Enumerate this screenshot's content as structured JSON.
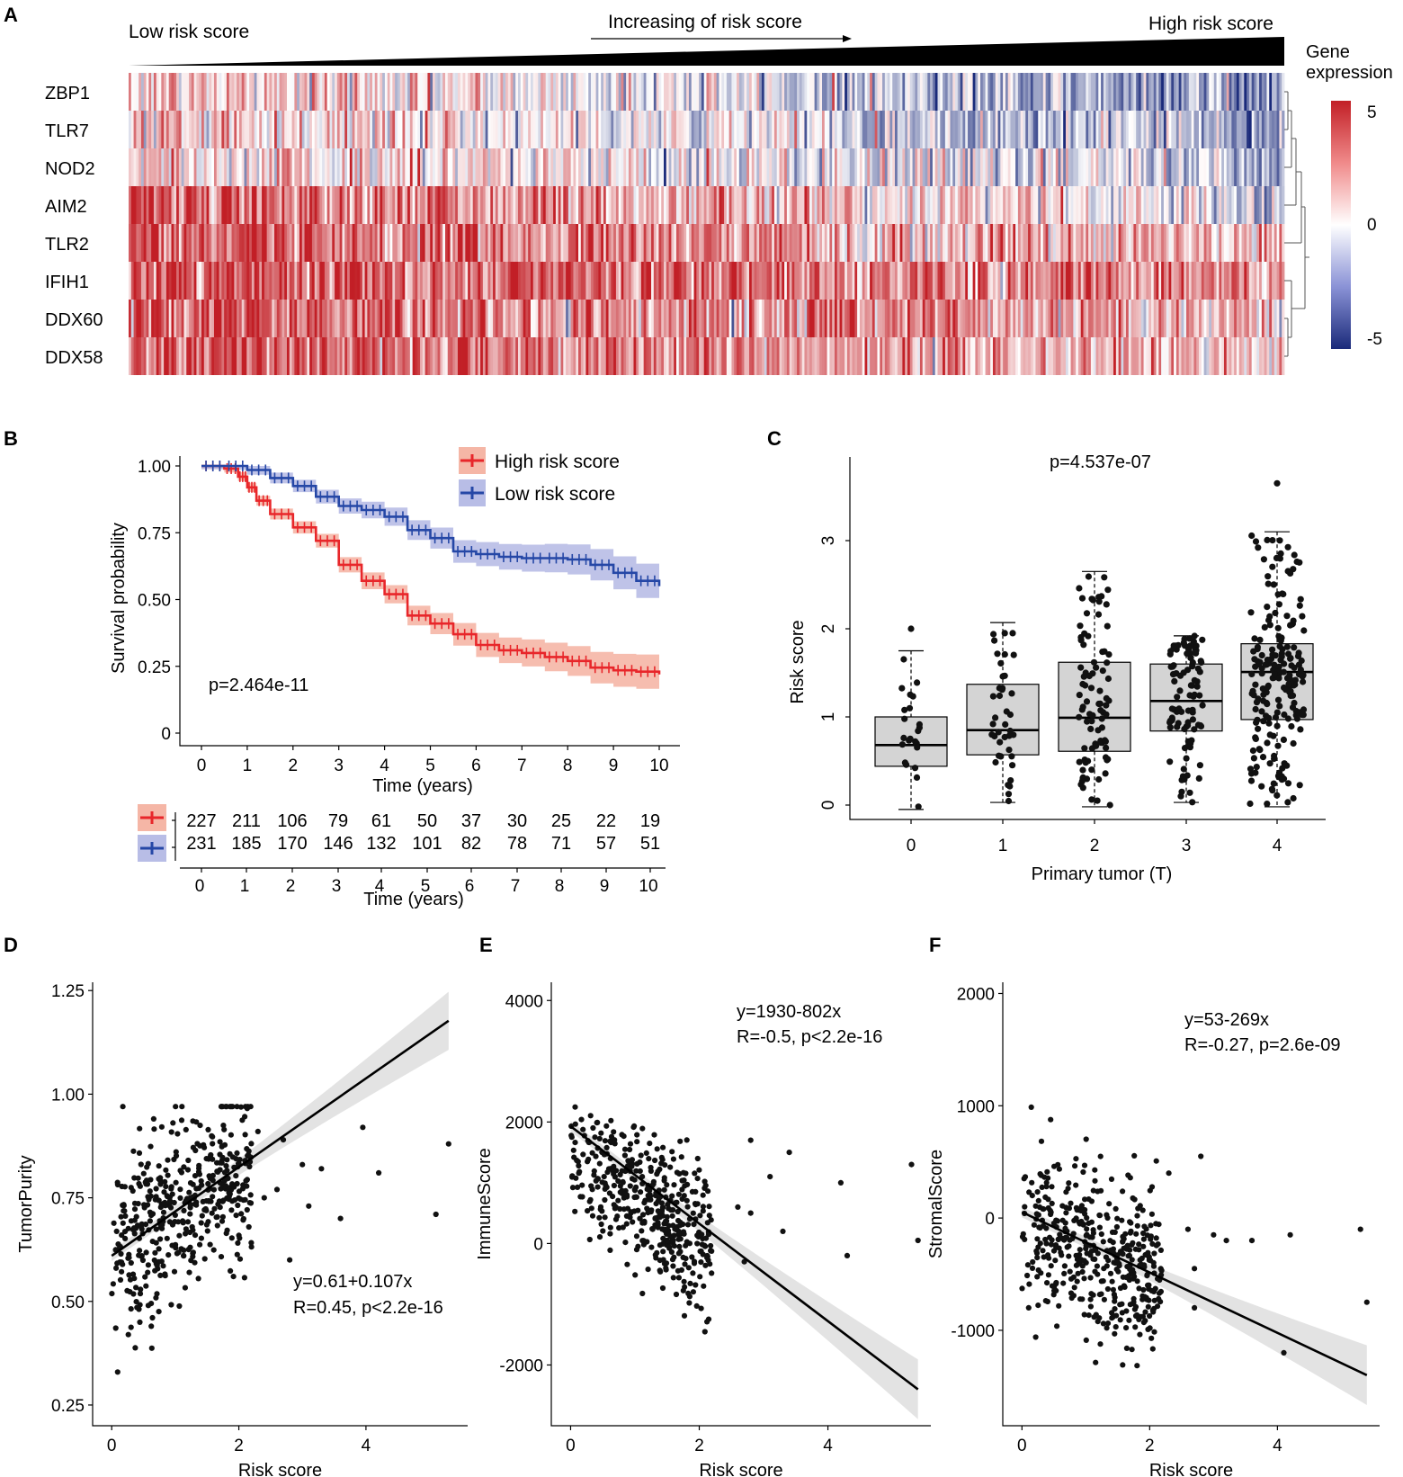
{
  "colors": {
    "red": "#e8262a",
    "blue": "#2547a6",
    "red_band": "#f5b6a6",
    "blue_band": "#b8bde6",
    "dark_red": "#c21f26",
    "dark_blue": "#1a2a7a",
    "box_fill": "#d4d4d4",
    "ci_band": "#e3e3e3"
  },
  "panels": {
    "A": {
      "label": "A",
      "low_label": "Low risk score",
      "mid_label": "Increasing of risk score",
      "high_label": "High risk score",
      "legend_title_1": "Gene",
      "legend_title_2": "expression",
      "legend_ticks": [
        "5",
        "0",
        "-5"
      ]
    },
    "B": {
      "label": "B",
      "pvalue": "p=2.464e-11",
      "legend": [
        "High risk score",
        "Low risk score"
      ],
      "xlabel": "Time (years)",
      "ylabel": "Survival probability"
    },
    "C": {
      "label": "C",
      "pvalue": "p=4.537e-07",
      "xlabel": "Primary tumor (T)",
      "ylabel": "Risk score"
    },
    "D": {
      "label": "D",
      "equation": "y=0.61+0.107x",
      "stats": "R=0.45, p<2.2e-16",
      "xlabel": "Risk score",
      "ylabel": "TumorPurity"
    },
    "E": {
      "label": "E",
      "equation": "y=1930-802x",
      "stats": "R=-0.5, p<2.2e-16",
      "xlabel": "Risk score",
      "ylabel": "ImmuneScore"
    },
    "F": {
      "label": "F",
      "equation": "y=53-269x",
      "stats": "R=-0.27, p=2.6e-09",
      "xlabel": "Risk score",
      "ylabel": "StromalScore"
    }
  },
  "chart_data": [
    {
      "type": "heatmap",
      "panel": "A",
      "rows": [
        "ZBP1",
        "TLR7",
        "NOD2",
        "AIM2",
        "TLR2",
        "IFIH1",
        "DDX60",
        "DDX58"
      ],
      "row_mean_trend": [
        [
          1.5,
          -2.5
        ],
        [
          1.5,
          -2.0
        ],
        [
          1.2,
          -1.2
        ],
        [
          4.0,
          -0.5
        ],
        [
          3.5,
          1.2
        ],
        [
          4.2,
          2.2
        ],
        [
          3.8,
          1.5
        ],
        [
          3.8,
          1.2
        ]
      ],
      "color_scale": {
        "min": -5,
        "mid": 0,
        "max": 5,
        "low_color": "#1a2a7a",
        "mid_color": "#ffffff",
        "high_color": "#c21f26"
      },
      "column_order": "increasing risk score",
      "n_columns": 460
    },
    {
      "type": "line",
      "panel": "B",
      "subtype": "kaplan-meier",
      "xlabel": "Time (years)",
      "ylabel": "Survival probability",
      "xlim": [
        0,
        10
      ],
      "ylim": [
        0,
        1
      ],
      "xticks": [
        "0",
        "1",
        "2",
        "3",
        "4",
        "5",
        "6",
        "7",
        "8",
        "9",
        "10"
      ],
      "yticks": [
        "0",
        "0.25",
        "0.50",
        "0.75",
        "1.00"
      ],
      "series": [
        {
          "name": "High risk score",
          "color": "#e8262a",
          "x": [
            0,
            0.5,
            0.8,
            1.0,
            1.2,
            1.5,
            2.0,
            2.5,
            3.0,
            3.5,
            4.0,
            4.5,
            5.0,
            5.5,
            6.0,
            6.5,
            7.0,
            7.5,
            8.0,
            8.5,
            9.0,
            9.5,
            10.0
          ],
          "y": [
            1.0,
            0.99,
            0.96,
            0.92,
            0.87,
            0.82,
            0.77,
            0.72,
            0.63,
            0.57,
            0.52,
            0.44,
            0.41,
            0.37,
            0.33,
            0.31,
            0.3,
            0.285,
            0.27,
            0.245,
            0.235,
            0.23,
            0.22
          ]
        },
        {
          "name": "Low risk score",
          "color": "#2547a6",
          "x": [
            0,
            0.5,
            1.0,
            1.5,
            2.0,
            2.5,
            3.0,
            3.5,
            4.0,
            4.5,
            5.0,
            5.5,
            6.0,
            6.5,
            7.0,
            7.5,
            8.0,
            8.5,
            9.0,
            9.5,
            10.0
          ],
          "y": [
            1.0,
            1.0,
            0.985,
            0.955,
            0.925,
            0.885,
            0.85,
            0.835,
            0.81,
            0.76,
            0.73,
            0.68,
            0.67,
            0.66,
            0.655,
            0.655,
            0.65,
            0.63,
            0.6,
            0.57,
            0.55
          ]
        }
      ],
      "risk_table": {
        "times": [
          "0",
          "1",
          "2",
          "3",
          "4",
          "5",
          "6",
          "7",
          "8",
          "9",
          "10"
        ],
        "high": [
          "227",
          "211",
          "106",
          "79",
          "61",
          "50",
          "37",
          "30",
          "25",
          "22",
          "19"
        ],
        "low": [
          "231",
          "185",
          "170",
          "146",
          "132",
          "101",
          "82",
          "78",
          "71",
          "57",
          "51"
        ]
      }
    },
    {
      "type": "box",
      "panel": "C",
      "xlabel": "Primary tumor (T)",
      "ylabel": "Risk score",
      "categories": [
        "0",
        "1",
        "2",
        "3",
        "4"
      ],
      "ylim": [
        -0.1,
        3.8
      ],
      "yticks": [
        "0",
        "1",
        "2",
        "3"
      ],
      "boxes": [
        {
          "category": "0",
          "min": -0.05,
          "q1": 0.44,
          "median": 0.68,
          "q3": 1.0,
          "max": 1.75,
          "outliers": [
            2.0
          ],
          "n": 24
        },
        {
          "category": "1",
          "min": 0.03,
          "q1": 0.57,
          "median": 0.85,
          "q3": 1.37,
          "max": 2.07,
          "outliers": [],
          "n": 40
        },
        {
          "category": "2",
          "min": -0.02,
          "q1": 0.61,
          "median": 0.99,
          "q3": 1.62,
          "max": 2.65,
          "outliers": [],
          "n": 90
        },
        {
          "category": "3",
          "min": 0.03,
          "q1": 0.84,
          "median": 1.18,
          "q3": 1.6,
          "max": 1.92,
          "outliers": [],
          "n": 95
        },
        {
          "category": "4",
          "min": -0.02,
          "q1": 0.97,
          "median": 1.51,
          "q3": 1.83,
          "max": 3.1,
          "outliers": [
            3.65
          ],
          "n": 200
        }
      ]
    },
    {
      "type": "scatter",
      "panel": "D",
      "xlabel": "Risk score",
      "ylabel": "TumorPurity",
      "xlim": [
        -0.3,
        5.6
      ],
      "ylim": [
        0.2,
        1.27
      ],
      "xticks": [
        "0",
        "2",
        "4"
      ],
      "yticks": [
        "0.25",
        "0.50",
        "0.75",
        "1.00",
        "1.25"
      ],
      "fit": {
        "intercept": 0.61,
        "slope": 0.107,
        "x_range": [
          0.0,
          5.3
        ]
      },
      "cluster": {
        "x_range": [
          0,
          2.2
        ],
        "y_center": 0.73,
        "y_spread": 0.24,
        "n": 440,
        "ylim_clip": [
          0.22,
          0.97
        ]
      },
      "outliers": [
        [
          2.3,
          0.91
        ],
        [
          2.7,
          0.89
        ],
        [
          2.6,
          0.77
        ],
        [
          2.4,
          0.75
        ],
        [
          3.0,
          0.83
        ],
        [
          3.3,
          0.82
        ],
        [
          3.1,
          0.73
        ],
        [
          3.6,
          0.7
        ],
        [
          3.95,
          0.92
        ],
        [
          4.2,
          0.81
        ],
        [
          5.3,
          0.88
        ],
        [
          5.1,
          0.71
        ],
        [
          2.8,
          0.6
        ]
      ]
    },
    {
      "type": "scatter",
      "panel": "E",
      "xlabel": "Risk score",
      "ylabel": "ImmuneScore",
      "xlim": [
        -0.3,
        5.6
      ],
      "ylim": [
        -3000,
        4300
      ],
      "xticks": [
        "0",
        "2",
        "4"
      ],
      "yticks": [
        "-2000",
        "0",
        "2000",
        "4000"
      ],
      "fit": {
        "intercept": 1930,
        "slope": -802,
        "x_range": [
          0.0,
          5.4
        ]
      },
      "cluster": {
        "x_range": [
          0,
          2.2
        ],
        "y_center": 700,
        "y_spread": 1100,
        "n": 440,
        "ylim_clip": [
          -1500,
          3700
        ]
      },
      "outliers": [
        [
          2.6,
          600
        ],
        [
          2.8,
          500
        ],
        [
          2.8,
          1700
        ],
        [
          3.1,
          1100
        ],
        [
          3.4,
          1500
        ],
        [
          3.3,
          200
        ],
        [
          4.2,
          1000
        ],
        [
          4.3,
          -200
        ],
        [
          5.3,
          1300
        ],
        [
          5.4,
          50
        ],
        [
          2.7,
          -300
        ]
      ]
    },
    {
      "type": "scatter",
      "panel": "F",
      "xlabel": "Risk score",
      "ylabel": "StromalScore",
      "xlim": [
        -0.3,
        5.6
      ],
      "ylim": [
        -1850,
        2100
      ],
      "xticks": [
        "0",
        "2",
        "4"
      ],
      "yticks": [
        "-1000",
        "0",
        "1000",
        "2000"
      ],
      "fit": {
        "intercept": 53,
        "slope": -269,
        "x_range": [
          0.0,
          5.4
        ]
      },
      "cluster": {
        "x_range": [
          0,
          2.2
        ],
        "y_center": -300,
        "y_spread": 700,
        "n": 440,
        "ylim_clip": [
          -1800,
          1900
        ]
      },
      "outliers": [
        [
          2.3,
          400
        ],
        [
          2.6,
          -100
        ],
        [
          2.8,
          550
        ],
        [
          2.7,
          -450
        ],
        [
          3.0,
          -150
        ],
        [
          3.2,
          -200
        ],
        [
          3.6,
          -200
        ],
        [
          4.2,
          -150
        ],
        [
          5.3,
          -100
        ],
        [
          5.4,
          -750
        ],
        [
          2.7,
          -800
        ],
        [
          4.1,
          -1200
        ]
      ]
    }
  ]
}
